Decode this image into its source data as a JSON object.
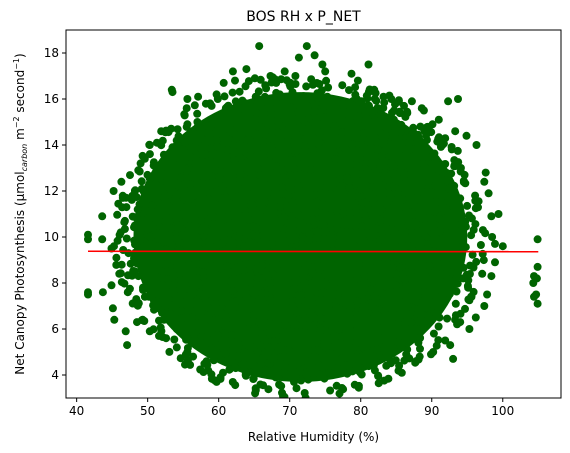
{
  "chart_data": {
    "type": "scatter",
    "title": "BOS RH x P_NET",
    "xlabel": "Relative Humidity (%)",
    "ylabel": {
      "prefix": "Net Canopy Photosynthesis (μmol",
      "subscript": "carbon",
      "middle": " m",
      "sup1": "−2",
      "middle2": " second",
      "sup2": "−1",
      "suffix": ")"
    },
    "xlim": [
      38.5,
      108.2
    ],
    "ylim": [
      3.0,
      19.0
    ],
    "xticks": [
      40,
      50,
      60,
      70,
      80,
      90,
      100
    ],
    "yticks": [
      4,
      6,
      8,
      10,
      12,
      14,
      16,
      18
    ],
    "grid": false,
    "legend": "none",
    "colors": {
      "points": "#006400",
      "fit": "#ff0000",
      "axes": "#000000"
    },
    "fit_line": {
      "x": [
        41.6,
        105.0
      ],
      "y": [
        9.38,
        9.36
      ]
    },
    "bulk_region": {
      "description_of_dense_cloud_center": "ellipse in data units",
      "cx": 71.5,
      "cy": 10.0,
      "rx": 23.5,
      "ry": 6.3
    },
    "series": [
      {
        "points": [
          [
            41.6,
            9.9
          ],
          [
            41.6,
            10.1
          ],
          [
            41.6,
            7.6
          ],
          [
            41.6,
            7.5
          ],
          [
            43.6,
            10.9
          ],
          [
            43.6,
            9.9
          ],
          [
            43.7,
            7.6
          ],
          [
            44.9,
            7.9
          ],
          [
            45.2,
            12.0
          ],
          [
            45.1,
            6.9
          ],
          [
            45.3,
            6.4
          ],
          [
            46.3,
            12.4
          ],
          [
            46.5,
            11.7
          ],
          [
            46.8,
            10.7
          ],
          [
            46.9,
            5.9
          ],
          [
            47.1,
            5.3
          ],
          [
            48.2,
            12.0
          ],
          [
            48.6,
            11.2
          ],
          [
            49.0,
            13.2
          ],
          [
            49.6,
            13.4
          ],
          [
            50.3,
            14.0
          ],
          [
            51.3,
            14.1
          ],
          [
            51.9,
            14.6
          ],
          [
            53.5,
            16.3
          ],
          [
            53.4,
            16.4
          ],
          [
            55.5,
            15.6
          ],
          [
            55.6,
            16.0
          ],
          [
            57.1,
            16.1
          ],
          [
            59.0,
            15.7
          ],
          [
            59.7,
            16.2
          ],
          [
            60.7,
            16.7
          ],
          [
            62.3,
            16.8
          ],
          [
            63.9,
            17.3
          ],
          [
            65.1,
            16.9
          ],
          [
            65.7,
            18.3
          ],
          [
            67.3,
            17.0
          ],
          [
            68.1,
            16.7
          ],
          [
            69.3,
            17.2
          ],
          [
            70.8,
            17.0
          ],
          [
            71.3,
            17.8
          ],
          [
            72.4,
            18.3
          ],
          [
            73.5,
            17.9
          ],
          [
            74.6,
            17.5
          ],
          [
            75.0,
            17.2
          ],
          [
            77.4,
            16.6
          ],
          [
            78.7,
            17.1
          ],
          [
            79.6,
            16.8
          ],
          [
            81.1,
            17.5
          ],
          [
            81.9,
            16.4
          ],
          [
            83.2,
            16.1
          ],
          [
            84.3,
            16.0
          ],
          [
            86.1,
            15.7
          ],
          [
            87.2,
            15.9
          ],
          [
            88.6,
            15.6
          ],
          [
            90.1,
            14.9
          ],
          [
            91.0,
            15.1
          ],
          [
            92.3,
            15.9
          ],
          [
            93.3,
            14.6
          ],
          [
            94.9,
            14.4
          ],
          [
            96.3,
            14.0
          ],
          [
            97.4,
            12.4
          ],
          [
            97.6,
            12.8
          ],
          [
            98.0,
            11.9
          ],
          [
            98.4,
            10.9
          ],
          [
            98.5,
            10.0
          ],
          [
            98.9,
            9.7
          ],
          [
            98.9,
            8.9
          ],
          [
            98.4,
            8.3
          ],
          [
            97.8,
            7.5
          ],
          [
            97.4,
            7.0
          ],
          [
            96.2,
            6.5
          ],
          [
            95.3,
            6.0
          ],
          [
            94.0,
            6.3
          ],
          [
            92.6,
            5.3
          ],
          [
            91.9,
            5.5
          ],
          [
            90.2,
            5.0
          ],
          [
            88.3,
            4.8
          ],
          [
            86.4,
            4.9
          ],
          [
            85.4,
            4.4
          ],
          [
            83.6,
            4.4
          ],
          [
            82.0,
            4.2
          ],
          [
            80.8,
            4.5
          ],
          [
            79.5,
            4.8
          ],
          [
            77.8,
            4.4
          ],
          [
            76.7,
            4.3
          ],
          [
            75.6,
            4.1
          ],
          [
            74.2,
            4.4
          ],
          [
            72.6,
            3.8
          ],
          [
            71.0,
            4.1
          ],
          [
            70.6,
            3.7
          ],
          [
            69.2,
            4.1
          ],
          [
            68.1,
            4.3
          ],
          [
            66.6,
            4.2
          ],
          [
            65.0,
            4.4
          ],
          [
            63.8,
            4.0
          ],
          [
            62.4,
            4.3
          ],
          [
            60.6,
            4.1
          ],
          [
            59.7,
            3.7
          ],
          [
            58.3,
            4.6
          ],
          [
            56.4,
            4.8
          ],
          [
            55.6,
            5.0
          ],
          [
            54.1,
            5.2
          ],
          [
            52.6,
            5.6
          ],
          [
            51.6,
            5.7
          ],
          [
            50.3,
            5.9
          ],
          [
            49.3,
            6.4
          ],
          [
            48.5,
            6.3
          ],
          [
            47.2,
            7.6
          ],
          [
            46.0,
            8.4
          ],
          [
            45.6,
            9.1
          ],
          [
            44.9,
            9.5
          ],
          [
            46.2,
            10.2
          ],
          [
            47.0,
            11.3
          ],
          [
            104.9,
            9.9
          ],
          [
            104.9,
            8.7
          ],
          [
            104.8,
            8.2
          ],
          [
            104.9,
            7.1
          ],
          [
            104.7,
            7.5
          ],
          [
            104.4,
            7.4
          ],
          [
            104.3,
            8.0
          ],
          [
            104.4,
            8.3
          ],
          [
            99.4,
            11.0
          ],
          [
            100.0,
            9.6
          ],
          [
            93.0,
            4.7
          ],
          [
            89.9,
            4.9
          ],
          [
            93.7,
            16.0
          ],
          [
            62.0,
            17.2
          ],
          [
            68.6,
            16.2
          ],
          [
            75.4,
            16.5
          ],
          [
            84.4,
            15.4
          ],
          [
            88.9,
            15.5
          ],
          [
            55.6,
            14.9
          ],
          [
            54.2,
            14.0
          ],
          [
            51.8,
            12.8
          ],
          [
            49.4,
            12.0
          ],
          [
            48.2,
            10.5
          ],
          [
            47.3,
            9.3
          ],
          [
            48.4,
            7.3
          ],
          [
            50.2,
            7.4
          ],
          [
            52.3,
            6.4
          ],
          [
            54.1,
            6.0
          ],
          [
            56.6,
            5.5
          ],
          [
            59.7,
            5.0
          ],
          [
            63.3,
            4.8
          ],
          [
            67.5,
            4.7
          ],
          [
            72.4,
            4.6
          ],
          [
            77.3,
            4.7
          ],
          [
            82.3,
            5.1
          ],
          [
            86.6,
            5.4
          ],
          [
            90.3,
            5.8
          ],
          [
            93.4,
            6.6
          ],
          [
            95.6,
            7.4
          ],
          [
            97.1,
            8.4
          ],
          [
            97.2,
            10.3
          ],
          [
            96.1,
            11.8
          ],
          [
            94.1,
            13.0
          ],
          [
            91.5,
            14.0
          ],
          [
            88.4,
            14.8
          ],
          [
            84.7,
            15.5
          ],
          [
            80.1,
            15.9
          ],
          [
            75.3,
            16.1
          ],
          [
            70.4,
            16.3
          ],
          [
            65.6,
            16.0
          ],
          [
            61.0,
            15.6
          ],
          [
            57.0,
            15.0
          ],
          [
            53.5,
            13.9
          ]
        ]
      }
    ]
  }
}
